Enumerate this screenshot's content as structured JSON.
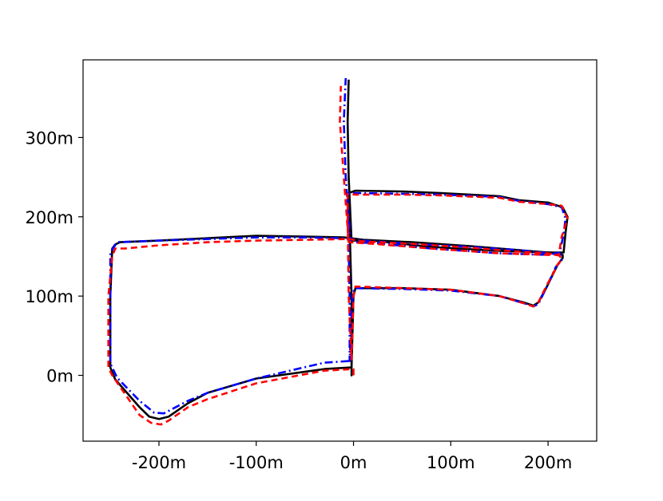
{
  "chart_data": {
    "type": "line",
    "xlim": [
      -278,
      250
    ],
    "ylim": [
      -83,
      398
    ],
    "x_ticks": [
      {
        "value": -200,
        "label": "-200m"
      },
      {
        "value": -100,
        "label": "-100m"
      },
      {
        "value": 0,
        "label": "0m"
      },
      {
        "value": 100,
        "label": "100m"
      },
      {
        "value": 200,
        "label": "200m"
      }
    ],
    "y_ticks": [
      {
        "value": 0,
        "label": "0m"
      },
      {
        "value": 100,
        "label": "100m"
      },
      {
        "value": 200,
        "label": "200m"
      },
      {
        "value": 300,
        "label": "300m"
      }
    ],
    "grid": false,
    "legend": false,
    "series": [
      {
        "style": "solid",
        "color": "#000000",
        "points": [
          [
            -2,
            10
          ],
          [
            -30,
            8
          ],
          [
            -100,
            -4
          ],
          [
            -150,
            -22
          ],
          [
            -170,
            -35
          ],
          [
            -190,
            -52
          ],
          [
            -200,
            -55
          ],
          [
            -210,
            -52
          ],
          [
            -220,
            -40
          ],
          [
            -245,
            -5
          ],
          [
            -250,
            10
          ],
          [
            -250,
            100
          ],
          [
            -248,
            160
          ],
          [
            -245,
            165
          ],
          [
            -240,
            168
          ],
          [
            -200,
            170
          ],
          [
            -150,
            173
          ],
          [
            -100,
            176
          ],
          [
            -50,
            175
          ],
          [
            -10,
            174
          ],
          [
            10,
            171
          ],
          [
            60,
            168
          ],
          [
            120,
            163
          ],
          [
            170,
            158
          ],
          [
            200,
            155
          ],
          [
            215,
            152
          ],
          [
            215,
            148
          ],
          [
            210,
            140
          ],
          [
            198,
            110
          ],
          [
            190,
            92
          ],
          [
            185,
            88
          ],
          [
            175,
            92
          ],
          [
            150,
            100
          ],
          [
            100,
            108
          ],
          [
            50,
            110
          ],
          [
            2,
            110
          ],
          [
            0,
            100
          ],
          [
            -2,
            10
          ],
          [
            -2,
            0
          ],
          [
            -2,
            100
          ],
          [
            -5,
            230
          ],
          [
            2,
            233
          ],
          [
            50,
            232
          ],
          [
            90,
            230
          ],
          [
            150,
            226
          ],
          [
            170,
            221
          ],
          [
            200,
            218
          ],
          [
            215,
            212
          ],
          [
            220,
            200
          ],
          [
            218,
            180
          ],
          [
            216,
            155
          ],
          [
            205,
            155
          ],
          [
            150,
            157
          ],
          [
            80,
            162
          ],
          [
            20,
            170
          ],
          [
            -2,
            170
          ],
          [
            -5,
            250
          ],
          [
            -6,
            320
          ],
          [
            -5,
            373
          ]
        ]
      },
      {
        "style": "dashdot",
        "color": "#0000ff",
        "points": [
          [
            -5,
            18
          ],
          [
            -30,
            16
          ],
          [
            -100,
            -4
          ],
          [
            -150,
            -22
          ],
          [
            -170,
            -32
          ],
          [
            -195,
            -48
          ],
          [
            -205,
            -47
          ],
          [
            -220,
            -32
          ],
          [
            -243,
            -3
          ],
          [
            -250,
            15
          ],
          [
            -250,
            100
          ],
          [
            -250,
            155
          ],
          [
            -243,
            168
          ],
          [
            -200,
            170
          ],
          [
            -150,
            172
          ],
          [
            -100,
            174
          ],
          [
            -50,
            174
          ],
          [
            -10,
            173
          ],
          [
            10,
            170
          ],
          [
            60,
            166
          ],
          [
            120,
            162
          ],
          [
            170,
            158
          ],
          [
            200,
            154
          ],
          [
            213,
            152
          ],
          [
            214,
            145
          ],
          [
            208,
            137
          ],
          [
            198,
            110
          ],
          [
            190,
            90
          ],
          [
            185,
            87
          ],
          [
            175,
            91
          ],
          [
            150,
            100
          ],
          [
            100,
            107
          ],
          [
            50,
            109
          ],
          [
            1,
            110
          ],
          [
            -1,
            100
          ],
          [
            -4,
            18
          ],
          [
            -4,
            100
          ],
          [
            -6,
            229
          ],
          [
            2,
            230
          ],
          [
            50,
            229
          ],
          [
            90,
            228
          ],
          [
            150,
            225
          ],
          [
            170,
            220
          ],
          [
            200,
            216
          ],
          [
            214,
            212
          ],
          [
            218,
            198
          ],
          [
            216,
            178
          ],
          [
            212,
            155
          ],
          [
            200,
            152
          ],
          [
            150,
            154
          ],
          [
            80,
            160
          ],
          [
            20,
            167
          ],
          [
            -3,
            168
          ],
          [
            -8,
            250
          ],
          [
            -10,
            320
          ],
          [
            -8,
            375
          ]
        ]
      },
      {
        "style": "dashed",
        "color": "#ff0000",
        "points": [
          [
            0,
            0
          ],
          [
            0,
            8
          ],
          [
            -30,
            6
          ],
          [
            -100,
            -10
          ],
          [
            -150,
            -30
          ],
          [
            -170,
            -40
          ],
          [
            -190,
            -57
          ],
          [
            -198,
            -62
          ],
          [
            -208,
            -60
          ],
          [
            -220,
            -50
          ],
          [
            -248,
            0
          ],
          [
            -252,
            10
          ],
          [
            -252,
            100
          ],
          [
            -248,
            150
          ],
          [
            -245,
            160
          ],
          [
            -235,
            160
          ],
          [
            -200,
            164
          ],
          [
            -150,
            168
          ],
          [
            -100,
            170
          ],
          [
            -50,
            171
          ],
          [
            -5,
            172
          ],
          [
            10,
            169
          ],
          [
            60,
            166
          ],
          [
            120,
            161
          ],
          [
            170,
            156
          ],
          [
            200,
            154
          ],
          [
            212,
            151
          ],
          [
            214,
            146
          ],
          [
            210,
            140
          ],
          [
            198,
            112
          ],
          [
            190,
            92
          ],
          [
            185,
            87
          ],
          [
            175,
            91
          ],
          [
            150,
            100
          ],
          [
            100,
            108
          ],
          [
            50,
            110
          ],
          [
            2,
            112
          ],
          [
            0,
            100
          ],
          [
            -2,
            20
          ],
          [
            -5,
            100
          ],
          [
            -6,
            200
          ],
          [
            -6,
            229
          ],
          [
            2,
            228
          ],
          [
            50,
            228
          ],
          [
            90,
            227
          ],
          [
            150,
            224
          ],
          [
            170,
            219
          ],
          [
            200,
            216
          ],
          [
            214,
            214
          ],
          [
            220,
            198
          ],
          [
            214,
            175
          ],
          [
            211,
            152
          ],
          [
            200,
            152
          ],
          [
            150,
            154
          ],
          [
            80,
            160
          ],
          [
            20,
            166
          ],
          [
            -5,
            168
          ],
          [
            -10,
            250
          ],
          [
            -14,
            320
          ],
          [
            -13,
            365
          ]
        ]
      }
    ]
  }
}
